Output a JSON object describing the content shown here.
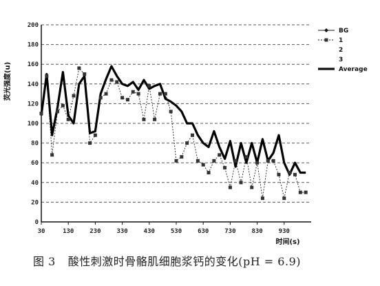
{
  "caption": {
    "figure": "图 3",
    "text": "酸性刺激时骨骼肌细胞浆钙的变化(pH = 6.9)"
  },
  "chart_data": {
    "type": "line",
    "xlabel": "时间(s)",
    "ylabel": "荧光强度(u)",
    "xlim": [
      30,
      1030
    ],
    "ylim": [
      0,
      200
    ],
    "xticks": [
      30,
      130,
      230,
      330,
      430,
      530,
      630,
      730,
      830,
      930
    ],
    "yticks": [
      0,
      20,
      40,
      60,
      80,
      100,
      120,
      140,
      160,
      180,
      200
    ],
    "grid": "horizontal-dashed",
    "legend": "right",
    "legend_entries": [
      "BG",
      "1",
      "2",
      "3",
      "Average"
    ],
    "series": [
      {
        "name": "1",
        "color": "#333333",
        "x": [
          30,
          50,
          70,
          90,
          110,
          130,
          150,
          170,
          190,
          210,
          230,
          250,
          270,
          290,
          310,
          330,
          350,
          370,
          390,
          410,
          430,
          450,
          470,
          490,
          510,
          530,
          550,
          570,
          590,
          610,
          630,
          650,
          670,
          690,
          710,
          730,
          750,
          770,
          790,
          810,
          830,
          850,
          870,
          890,
          910,
          930,
          950,
          970,
          990,
          1010
        ],
        "y": [
          110,
          148,
          68,
          112,
          118,
          104,
          128,
          156,
          150,
          80,
          88,
          126,
          130,
          144,
          142,
          126,
          124,
          132,
          130,
          104,
          138,
          104,
          130,
          130,
          112,
          62,
          66,
          80,
          88,
          62,
          58,
          50,
          62,
          68,
          55,
          35,
          62,
          40,
          66,
          35,
          60,
          24,
          62,
          62,
          48,
          24,
          50,
          48,
          30,
          30
        ]
      },
      {
        "name": "Average",
        "color": "#000000",
        "x": [
          30,
          50,
          70,
          90,
          110,
          130,
          150,
          170,
          190,
          210,
          230,
          250,
          270,
          290,
          310,
          330,
          350,
          370,
          390,
          410,
          430,
          450,
          470,
          490,
          510,
          530,
          550,
          570,
          590,
          610,
          630,
          650,
          670,
          690,
          710,
          730,
          750,
          770,
          790,
          810,
          830,
          850,
          870,
          890,
          910,
          930,
          950,
          970,
          990,
          1010
        ],
        "y": [
          108,
          150,
          88,
          116,
          152,
          108,
          100,
          140,
          148,
          90,
          92,
          130,
          145,
          158,
          148,
          140,
          138,
          142,
          134,
          144,
          135,
          138,
          140,
          125,
          122,
          118,
          112,
          100,
          100,
          88,
          80,
          76,
          92,
          76,
          64,
          82,
          56,
          80,
          60,
          80,
          60,
          84,
          62,
          70,
          88,
          60,
          48,
          60,
          50,
          50
        ]
      }
    ]
  }
}
